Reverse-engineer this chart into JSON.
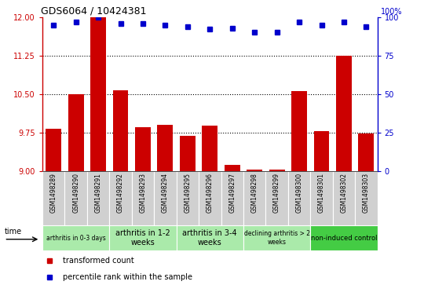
{
  "title": "GDS6064 / 10424381",
  "samples": [
    "GSM1498289",
    "GSM1498290",
    "GSM1498291",
    "GSM1498292",
    "GSM1498293",
    "GSM1498294",
    "GSM1498295",
    "GSM1498296",
    "GSM1498297",
    "GSM1498298",
    "GSM1498299",
    "GSM1498300",
    "GSM1498301",
    "GSM1498302",
    "GSM1498303"
  ],
  "bar_values": [
    9.82,
    10.5,
    12.0,
    10.58,
    9.85,
    9.9,
    9.68,
    9.88,
    9.12,
    9.03,
    9.02,
    10.56,
    9.78,
    11.25,
    9.73
  ],
  "percentile_values": [
    95,
    97,
    100,
    96,
    96,
    95,
    94,
    92,
    93,
    90,
    90,
    97,
    95,
    97,
    94
  ],
  "bar_color": "#cc0000",
  "percentile_color": "#0000cc",
  "ylim_left": [
    9.0,
    12.0
  ],
  "ylim_right": [
    0,
    100
  ],
  "yticks_left": [
    9,
    9.75,
    10.5,
    11.25,
    12
  ],
  "yticks_right": [
    0,
    25,
    50,
    75,
    100
  ],
  "groups": [
    {
      "label": "arthritis in 0-3 days",
      "start": 0,
      "end": 3,
      "color": "#ccffcc",
      "fontsize": 5.5
    },
    {
      "label": "arthritis in 1-2\nweeks",
      "start": 3,
      "end": 6,
      "color": "#ccffcc",
      "fontsize": 7
    },
    {
      "label": "arthritis in 3-4\nweeks",
      "start": 6,
      "end": 9,
      "color": "#ccffcc",
      "fontsize": 7
    },
    {
      "label": "declining arthritis > 2\nweeks",
      "start": 9,
      "end": 12,
      "color": "#ccffcc",
      "fontsize": 5.5
    },
    {
      "label": "non-induced control",
      "start": 12,
      "end": 15,
      "color": "#44cc44",
      "fontsize": 6
    }
  ],
  "legend_bar_label": "transformed count",
  "legend_dot_label": "percentile rank within the sample",
  "time_label": "time",
  "background_color": "#ffffff"
}
